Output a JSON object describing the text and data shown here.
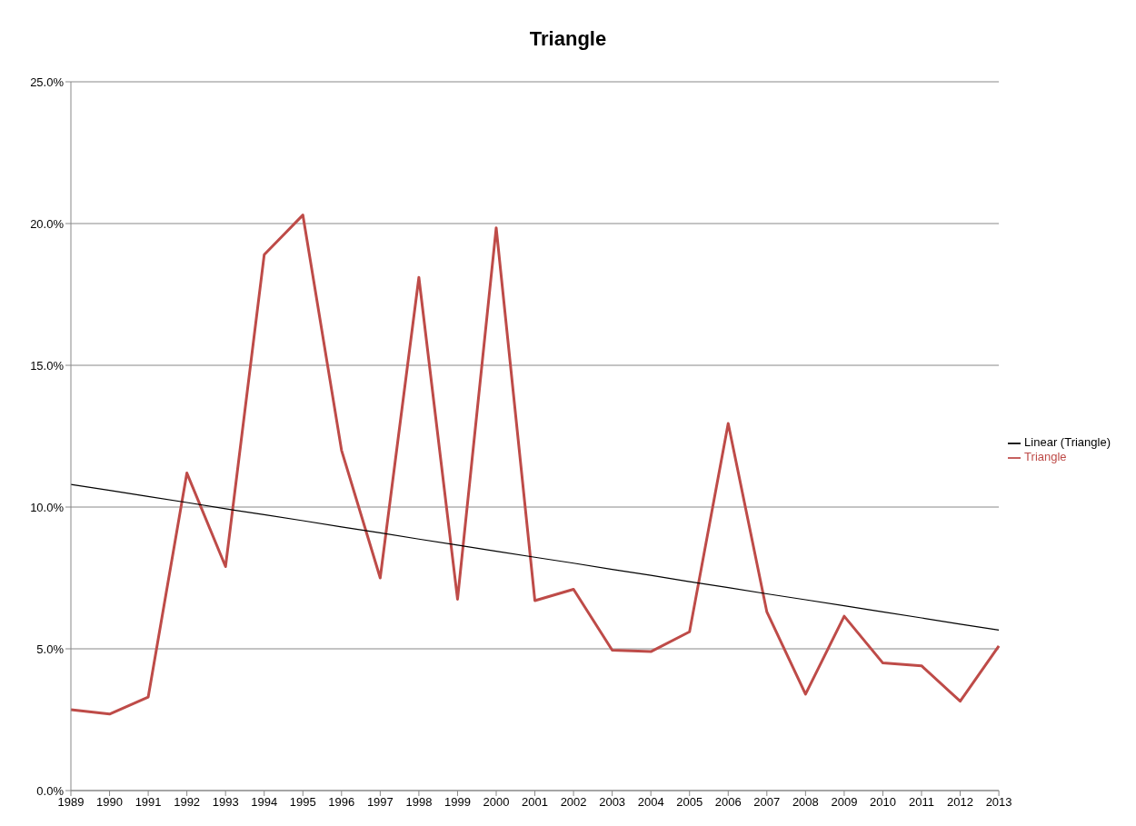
{
  "chart_data": {
    "type": "line",
    "title": "Triangle",
    "categories": [
      "1989",
      "1990",
      "1991",
      "1992",
      "1993",
      "1994",
      "1995",
      "1996",
      "1997",
      "1998",
      "1999",
      "2000",
      "2001",
      "2002",
      "2003",
      "2004",
      "2005",
      "2006",
      "2007",
      "2008",
      "2009",
      "2010",
      "2011",
      "2012",
      "2013"
    ],
    "series": [
      {
        "name": "Triangle",
        "color": "#be4b48",
        "values": [
          2.85,
          2.7,
          3.3,
          11.2,
          7.9,
          18.9,
          20.3,
          12.0,
          7.5,
          18.1,
          6.75,
          19.85,
          6.7,
          7.1,
          4.95,
          4.9,
          5.6,
          12.95,
          6.3,
          3.4,
          6.15,
          4.5,
          4.4,
          3.15,
          5.1
        ]
      },
      {
        "name": "Linear (Triangle)",
        "color": "#000000",
        "values": [
          10.8,
          10.59,
          10.37,
          10.16,
          9.94,
          9.73,
          9.52,
          9.3,
          9.09,
          8.87,
          8.66,
          8.44,
          8.23,
          8.02,
          7.8,
          7.59,
          7.37,
          7.16,
          6.94,
          6.73,
          6.52,
          6.3,
          6.09,
          5.87,
          5.66
        ]
      }
    ],
    "ylim": [
      0,
      25
    ],
    "yticks": [
      {
        "value": 0,
        "label": "0.0%"
      },
      {
        "value": 5,
        "label": "5.0%"
      },
      {
        "value": 10,
        "label": "10.0%"
      },
      {
        "value": 15,
        "label": "15.0%"
      },
      {
        "value": 20,
        "label": "20.0%"
      },
      {
        "value": 25,
        "label": "25.0%"
      }
    ],
    "grid": "y",
    "legend": "right",
    "marker": "none"
  }
}
